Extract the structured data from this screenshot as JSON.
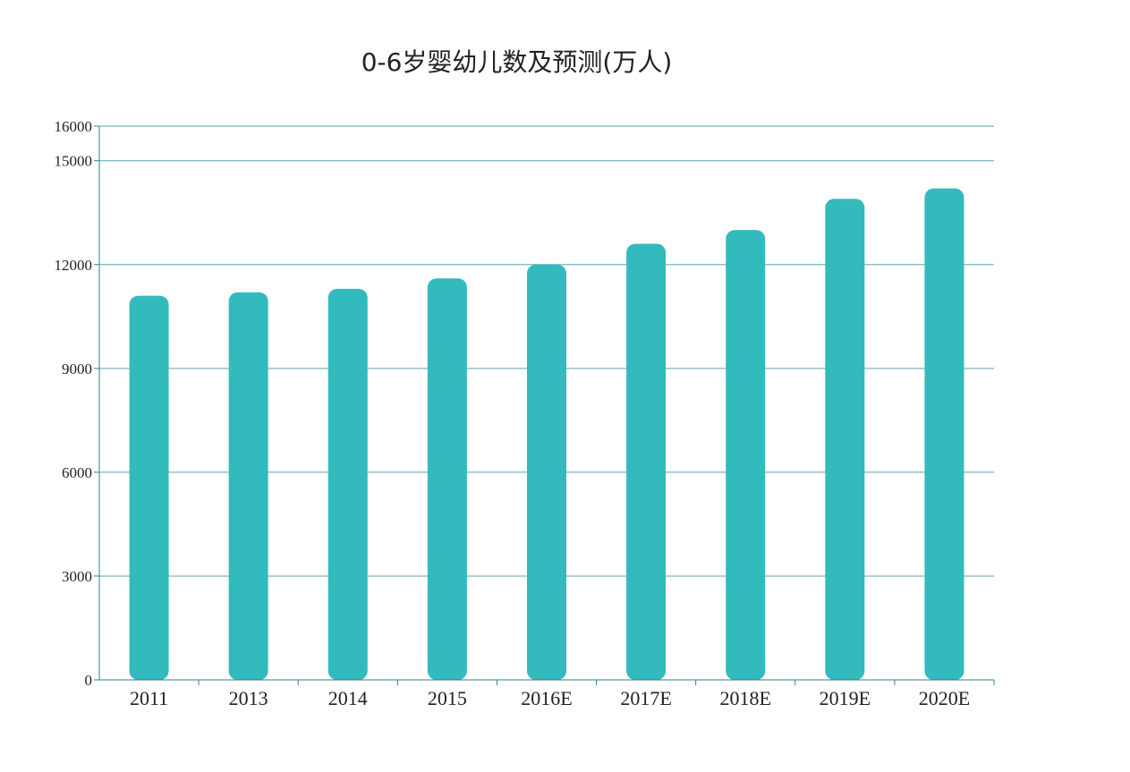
{
  "chart_data": {
    "type": "bar",
    "title": "0-6岁婴幼儿数及预测(万人)",
    "xlabel": "",
    "ylabel": "",
    "categories": [
      "2011",
      "2013",
      "2014",
      "2015",
      "2016E",
      "2017E",
      "2018E",
      "2019E",
      "2020E"
    ],
    "values": [
      11100,
      11200,
      11300,
      11600,
      12000,
      12600,
      13000,
      13900,
      14200
    ],
    "ylim": [
      0,
      16000
    ],
    "yticks": [
      0,
      3000,
      6000,
      9000,
      12000,
      15000,
      16000
    ],
    "grid": true,
    "legend": "none"
  },
  "colors": {
    "bar": "#33BABC",
    "axis": "#2f7f8f",
    "grid": "#5fa3ae"
  }
}
